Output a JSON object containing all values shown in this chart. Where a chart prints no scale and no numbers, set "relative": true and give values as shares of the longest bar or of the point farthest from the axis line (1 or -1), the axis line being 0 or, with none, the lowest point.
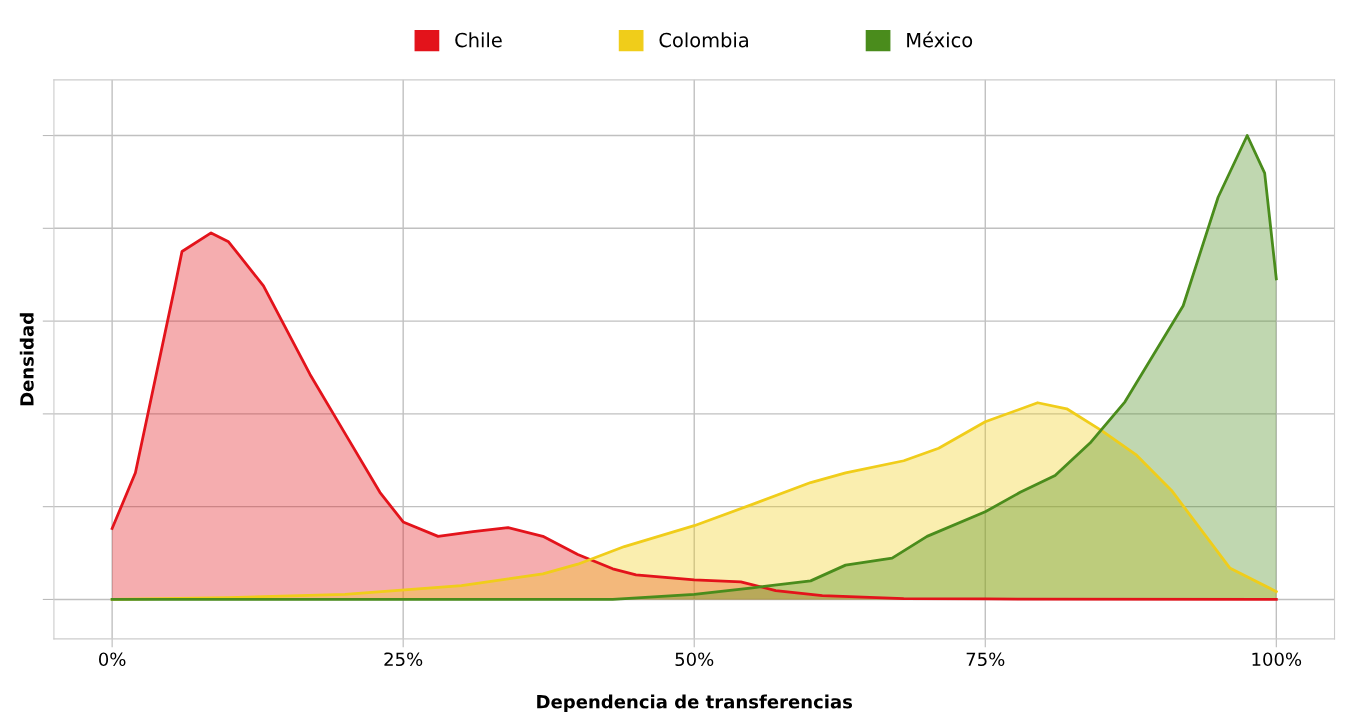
{
  "chart_data": {
    "type": "area",
    "xlabel": "Dependencia de transferencias",
    "ylabel": "Densidad",
    "relative": true,
    "xlim": [
      -5,
      105
    ],
    "xticks": [
      {
        "value": 0,
        "label": "0%"
      },
      {
        "value": 25,
        "label": "25%"
      },
      {
        "value": 50,
        "label": "50%"
      },
      {
        "value": 75,
        "label": "75%"
      },
      {
        "value": 100,
        "label": "100%"
      }
    ],
    "grid": true,
    "legend": "top",
    "tick_labels": "x",
    "series": [
      {
        "name": "Chile",
        "color": "#e3131b",
        "x": [
          0,
          2,
          5.4,
          6,
          8.5,
          10,
          13,
          17,
          20,
          23,
          25,
          28,
          31,
          34,
          37,
          40,
          43,
          45,
          50,
          54,
          57,
          61,
          68,
          75,
          100
        ],
        "values": [
          0.153,
          0.273,
          0.676,
          0.75,
          0.79,
          0.771,
          0.676,
          0.485,
          0.358,
          0.231,
          0.167,
          0.136,
          0.146,
          0.155,
          0.136,
          0.097,
          0.066,
          0.053,
          0.042,
          0.038,
          0.019,
          0.008,
          0.002,
          0.001,
          0
        ]
      },
      {
        "name": "Colombia",
        "color": "#f0cd1a",
        "x": [
          0,
          10,
          20,
          30,
          37,
          40,
          44,
          50,
          55,
          60,
          63,
          68,
          71,
          75,
          79.5,
          82,
          85,
          88,
          91,
          96,
          100
        ],
        "values": [
          0,
          0.004,
          0.011,
          0.03,
          0.055,
          0.076,
          0.114,
          0.159,
          0.205,
          0.252,
          0.273,
          0.299,
          0.326,
          0.383,
          0.424,
          0.411,
          0.364,
          0.311,
          0.235,
          0.068,
          0.017
        ]
      },
      {
        "name": "México",
        "color": "#4a8c1c",
        "x": [
          0,
          43,
          50,
          55,
          60,
          63,
          67,
          70,
          75,
          78,
          81,
          84,
          87,
          92,
          95,
          97.5,
          99,
          100
        ],
        "values": [
          0,
          0,
          0.011,
          0.025,
          0.04,
          0.074,
          0.089,
          0.136,
          0.189,
          0.231,
          0.267,
          0.337,
          0.426,
          0.633,
          0.867,
          1.0,
          0.919,
          0.691
        ]
      }
    ]
  }
}
